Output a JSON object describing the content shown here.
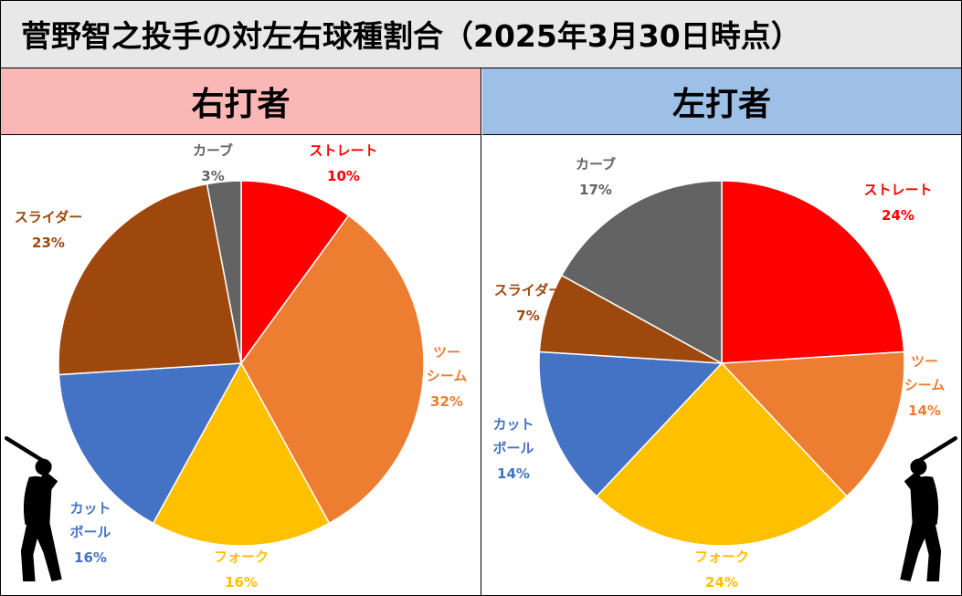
{
  "header": {
    "title": "菅野智之投手の対左右球種割合（2025年3月30日時点）"
  },
  "panels": [
    {
      "label": "右打者",
      "color": "#fbb6b6"
    },
    {
      "label": "左打者",
      "color": "#9ec0e6"
    }
  ],
  "icons": [
    "batter-silhouette-icon"
  ],
  "chart_data": [
    {
      "type": "pie",
      "title": "右打者",
      "unit": "%",
      "slices": [
        {
          "label": "ストレート",
          "value": 10,
          "color": "#ff0000"
        },
        {
          "label": "ツーシーム",
          "value": 32,
          "color": "#ed7d31"
        },
        {
          "label": "フォーク",
          "value": 16,
          "color": "#ffc000"
        },
        {
          "label": "カットボール",
          "value": 16,
          "color": "#4472c4"
        },
        {
          "label": "スライダー",
          "value": 23,
          "color": "#9e480e"
        },
        {
          "label": "カーブ",
          "value": 3,
          "color": "#636363"
        }
      ]
    },
    {
      "type": "pie",
      "title": "左打者",
      "unit": "%",
      "slices": [
        {
          "label": "ストレート",
          "value": 24,
          "color": "#ff0000"
        },
        {
          "label": "ツーシーム",
          "value": 14,
          "color": "#ed7d31"
        },
        {
          "label": "フォーク",
          "value": 24,
          "color": "#ffc000"
        },
        {
          "label": "カットボール",
          "value": 14,
          "color": "#4472c4"
        },
        {
          "label": "スライダー",
          "value": 7,
          "color": "#9e480e"
        },
        {
          "label": "カーブ",
          "value": 17,
          "color": "#636363"
        }
      ]
    }
  ]
}
